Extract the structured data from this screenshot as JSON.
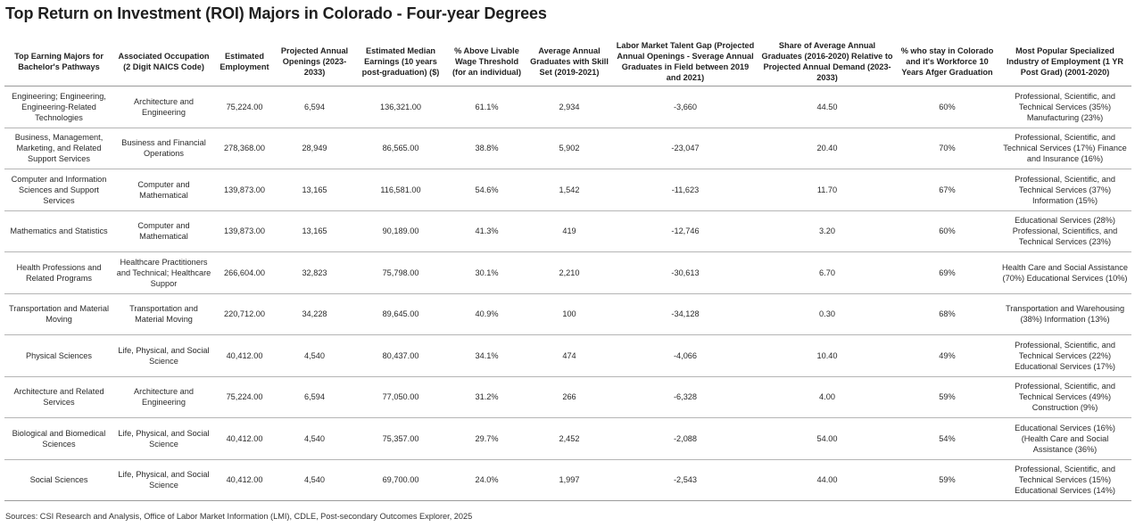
{
  "title": "Top Return on Investment (ROI) Majors in Colorado - Four-year Degrees",
  "columns": [
    "Top Earning Majors for Bachelor's Pathways",
    "Associated Occupation (2 Digit NAICS Code)",
    "Estimated Employment",
    "Projected Annual Openings (2023-2033)",
    "Estimated Median Earnings (10 years post-graduation) ($)",
    "% Above Livable Wage Threshold (for an individual)",
    "Average Annual Graduates with Skill Set (2019-2021)",
    "Labor Market Talent Gap (Projected Annual Openings - Sverage Annual Graduates in Field between 2019 and 2021)",
    "Share of Average Annual Graduates (2016-2020) Relative to Projected Annual Demand (2023-2033)",
    "% who stay in Colorado and it's Workforce 10 Years Afger Graduation",
    "Most Popular Specialized Industry of Employment (1 YR Post Grad) (2001-2020)"
  ],
  "rows": [
    [
      "Engineering; Engineering, Engineering-Related Technologies",
      "Architecture and Engineering",
      "75,224.00",
      "6,594",
      "136,321.00",
      "61.1%",
      "2,934",
      "-3,660",
      "44.50",
      "60%",
      "Professional, Scientific, and Technical Services (35%) Manufacturing (23%)"
    ],
    [
      "Business, Management, Marketing, and Related Support Services",
      "Business and Financial Operations",
      "278,368.00",
      "28,949",
      "86,565.00",
      "38.8%",
      "5,902",
      "-23,047",
      "20.40",
      "70%",
      "Professional, Scientific, and Technical Services (17%) Finance and Insurance (16%)"
    ],
    [
      "Computer and Information Sciences and Support Services",
      "Computer and Mathematical",
      "139,873.00",
      "13,165",
      "116,581.00",
      "54.6%",
      "1,542",
      "-11,623",
      "11.70",
      "67%",
      "Professional, Scientific, and Technical Services (37%) Information (15%)"
    ],
    [
      "Mathematics and Statistics",
      "Computer and Mathematical",
      "139,873.00",
      "13,165",
      "90,189.00",
      "41.3%",
      "419",
      "-12,746",
      "3.20",
      "60%",
      "Educational Services (28%) Professional, Scientifics, and Technical Services (23%)"
    ],
    [
      "Health Professions and Related Programs",
      "Healthcare Practitioners and Technical; Healthcare Suppor",
      "266,604.00",
      "32,823",
      "75,798.00",
      "30.1%",
      "2,210",
      "-30,613",
      "6.70",
      "69%",
      "Health Care and Social Assistance (70%) Educational Services (10%)"
    ],
    [
      "Transportation and Material Moving",
      "Transportation and Material Moving",
      "220,712.00",
      "34,228",
      "89,645.00",
      "40.9%",
      "100",
      "-34,128",
      "0.30",
      "68%",
      "Transportation and Warehousing (38%) Information (13%)"
    ],
    [
      "Physical Sciences",
      "Life, Physical, and Social Science",
      "40,412.00",
      "4,540",
      "80,437.00",
      "34.1%",
      "474",
      "-4,066",
      "10.40",
      "49%",
      "Professional, Scientific, and Technical Services (22%) Educational Services (17%)"
    ],
    [
      "Architecture and Related Services",
      "Architecture and Engineering",
      "75,224.00",
      "6,594",
      "77,050.00",
      "31.2%",
      "266",
      "-6,328",
      "4.00",
      "59%",
      "Professional, Scientific, and Technical Services (49%) Construction (9%)"
    ],
    [
      "Biological and Biomedical Sciences",
      "Life, Physical, and Social Science",
      "40,412.00",
      "4,540",
      "75,357.00",
      "29.7%",
      "2,452",
      "-2,088",
      "54.00",
      "54%",
      "Educational Services (16%) (Health Care and Social Assistance (36%)"
    ],
    [
      "Social Sciences",
      "Life, Physical, and Social Science",
      "40,412.00",
      "4,540",
      "69,700.00",
      "24.0%",
      "1,997",
      "-2,543",
      "44.00",
      "59%",
      "Professional, Scientific, and Technical Services (15%) Educational Services (14%)"
    ]
  ],
  "source": "Sources: CSI Research and Analysis, Office of Labor Market Information (LMI), CDLE, Post-secondary Outcomes Explorer, 2025"
}
